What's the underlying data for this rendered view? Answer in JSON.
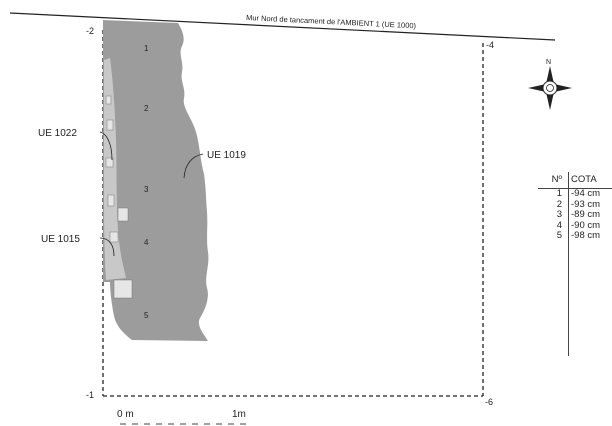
{
  "wall_label": "Mur Nord de tancament de l'AMBIENT 1  (UE 1000)",
  "corners": {
    "top_left": "-2",
    "top_right": "-4",
    "bottom_left": "-1",
    "bottom_right": "-6"
  },
  "fill_labels": {
    "ue_1022": "UE 1022",
    "ue_1019": "UE 1019",
    "ue_1015": "UE 1015"
  },
  "point_numbers": [
    "1",
    "2",
    "3",
    "4",
    "5"
  ],
  "north_label": "N",
  "scale": {
    "start": "0 m",
    "end": "1m"
  },
  "cota_table": {
    "header_num": "Nº",
    "header_cota": "COTA",
    "rows": [
      {
        "num": "1",
        "cota": "-94 cm"
      },
      {
        "num": "2",
        "cota": "-93 cm"
      },
      {
        "num": "3",
        "cota": "-89 cm"
      },
      {
        "num": "4",
        "cota": "-90 cm"
      },
      {
        "num": "5",
        "cota": "-98 cm"
      }
    ]
  },
  "colors": {
    "fill_ue_1019": "#9c9c9c",
    "fill_ue_1022": "#c8c8c8",
    "line": "#222222"
  }
}
